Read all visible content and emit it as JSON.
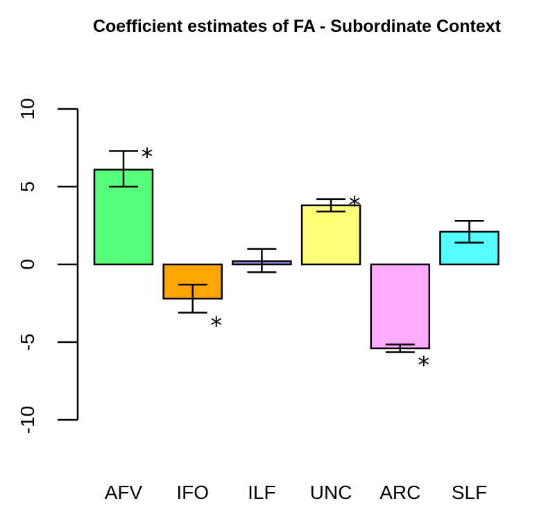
{
  "chart_data": {
    "type": "bar",
    "title": "Coefficient estimates of FA - Subordinate Context",
    "xlabel": "",
    "ylabel": "",
    "ylim": [
      -10,
      10
    ],
    "yticks": [
      -10,
      -5,
      0,
      5,
      10
    ],
    "yticks_labels": [
      "-10",
      "-5",
      "0",
      "5",
      "10"
    ],
    "grid": false,
    "legend": "none",
    "categories": [
      "AFV",
      "IFO",
      "ILF",
      "UNC",
      "ARC",
      "SLF"
    ],
    "values": [
      6.1,
      -2.2,
      0.2,
      3.8,
      -5.4,
      2.1
    ],
    "error_bars": [
      [
        5.0,
        7.3
      ],
      [
        -3.1,
        -1.3
      ],
      [
        -0.5,
        1.0
      ],
      [
        3.4,
        4.2
      ],
      [
        -5.65,
        -5.15
      ],
      [
        1.4,
        2.8
      ]
    ],
    "significant": [
      true,
      true,
      false,
      true,
      true,
      false
    ],
    "significance_marker": "*",
    "colors": [
      "#55ff77",
      "#ffa500",
      "#9999ff",
      "#ffff77",
      "#ffaaff",
      "#55ffff"
    ]
  }
}
